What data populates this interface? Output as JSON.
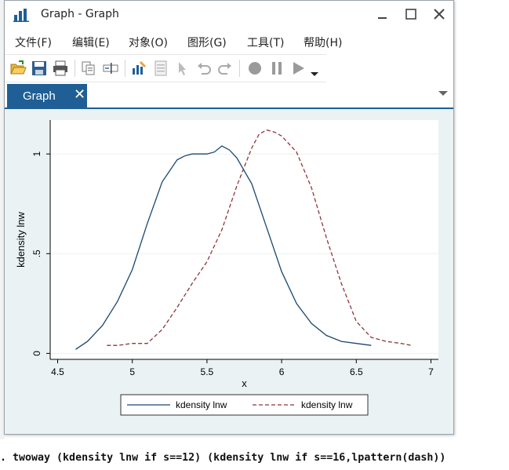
{
  "window": {
    "title": "Graph - Graph"
  },
  "menu": {
    "items": [
      {
        "label": "文件(F)"
      },
      {
        "label": "编辑(E)"
      },
      {
        "label": "对象(O)"
      },
      {
        "label": "图形(G)"
      },
      {
        "label": "工具(T)"
      },
      {
        "label": "帮助(H)"
      }
    ]
  },
  "toolbar": {
    "buttons": [
      "open-icon",
      "save-icon",
      "print-icon",
      "copy-icon",
      "rename-icon",
      "graph-editor-icon",
      "data-editor-icon",
      "pointer-icon",
      "undo-icon",
      "redo-icon",
      "record-icon",
      "pause-icon",
      "play-icon",
      "dropdown-icon"
    ]
  },
  "tabs": {
    "active_label": "Graph",
    "close_glyph": "✕"
  },
  "colors": {
    "series1": "#1a476f",
    "series2": "#90353b",
    "plot_bg": "#ffffff",
    "outer_bg": "#eaf2f3",
    "tab_bg": "#1f5f95"
  },
  "chart_data": {
    "type": "line",
    "xlabel": "x",
    "ylabel": "kdensity lnw",
    "xlim": [
      4.45,
      7.05
    ],
    "ylim": [
      -0.03,
      1.17
    ],
    "xticks": [
      4.5,
      5,
      5.5,
      6,
      6.5,
      7
    ],
    "xtick_labels": [
      "4.5",
      "5",
      "5.5",
      "6",
      "6.5",
      "7"
    ],
    "yticks": [
      0,
      0.5,
      1
    ],
    "ytick_labels": [
      "0",
      ".5",
      "1"
    ],
    "grid": true,
    "legend_position": "bottom",
    "series": [
      {
        "name": "kdensity lnw",
        "style": "solid",
        "x": [
          4.62,
          4.7,
          4.8,
          4.9,
          5.0,
          5.1,
          5.2,
          5.3,
          5.35,
          5.4,
          5.5,
          5.55,
          5.6,
          5.65,
          5.7,
          5.8,
          5.9,
          6.0,
          6.1,
          6.2,
          6.3,
          6.4,
          6.5,
          6.6
        ],
        "y": [
          0.02,
          0.06,
          0.14,
          0.26,
          0.42,
          0.65,
          0.86,
          0.97,
          0.99,
          1.0,
          1.0,
          1.01,
          1.04,
          1.02,
          0.98,
          0.85,
          0.63,
          0.41,
          0.25,
          0.15,
          0.09,
          0.06,
          0.05,
          0.04
        ]
      },
      {
        "name": "kdensity lnw",
        "style": "dash",
        "x": [
          4.83,
          4.9,
          5.0,
          5.1,
          5.2,
          5.3,
          5.4,
          5.5,
          5.6,
          5.7,
          5.8,
          5.85,
          5.9,
          5.95,
          6.0,
          6.1,
          6.2,
          6.3,
          6.4,
          6.5,
          6.6,
          6.7,
          6.8,
          6.87
        ],
        "y": [
          0.04,
          0.04,
          0.05,
          0.05,
          0.12,
          0.23,
          0.35,
          0.46,
          0.62,
          0.84,
          1.03,
          1.1,
          1.12,
          1.11,
          1.09,
          1.01,
          0.83,
          0.58,
          0.35,
          0.16,
          0.08,
          0.06,
          0.05,
          0.04
        ]
      }
    ]
  },
  "console": {
    "command": ". twoway (kdensity lnw if s==12) (kdensity lnw if s==16,lpattern(dash))"
  }
}
